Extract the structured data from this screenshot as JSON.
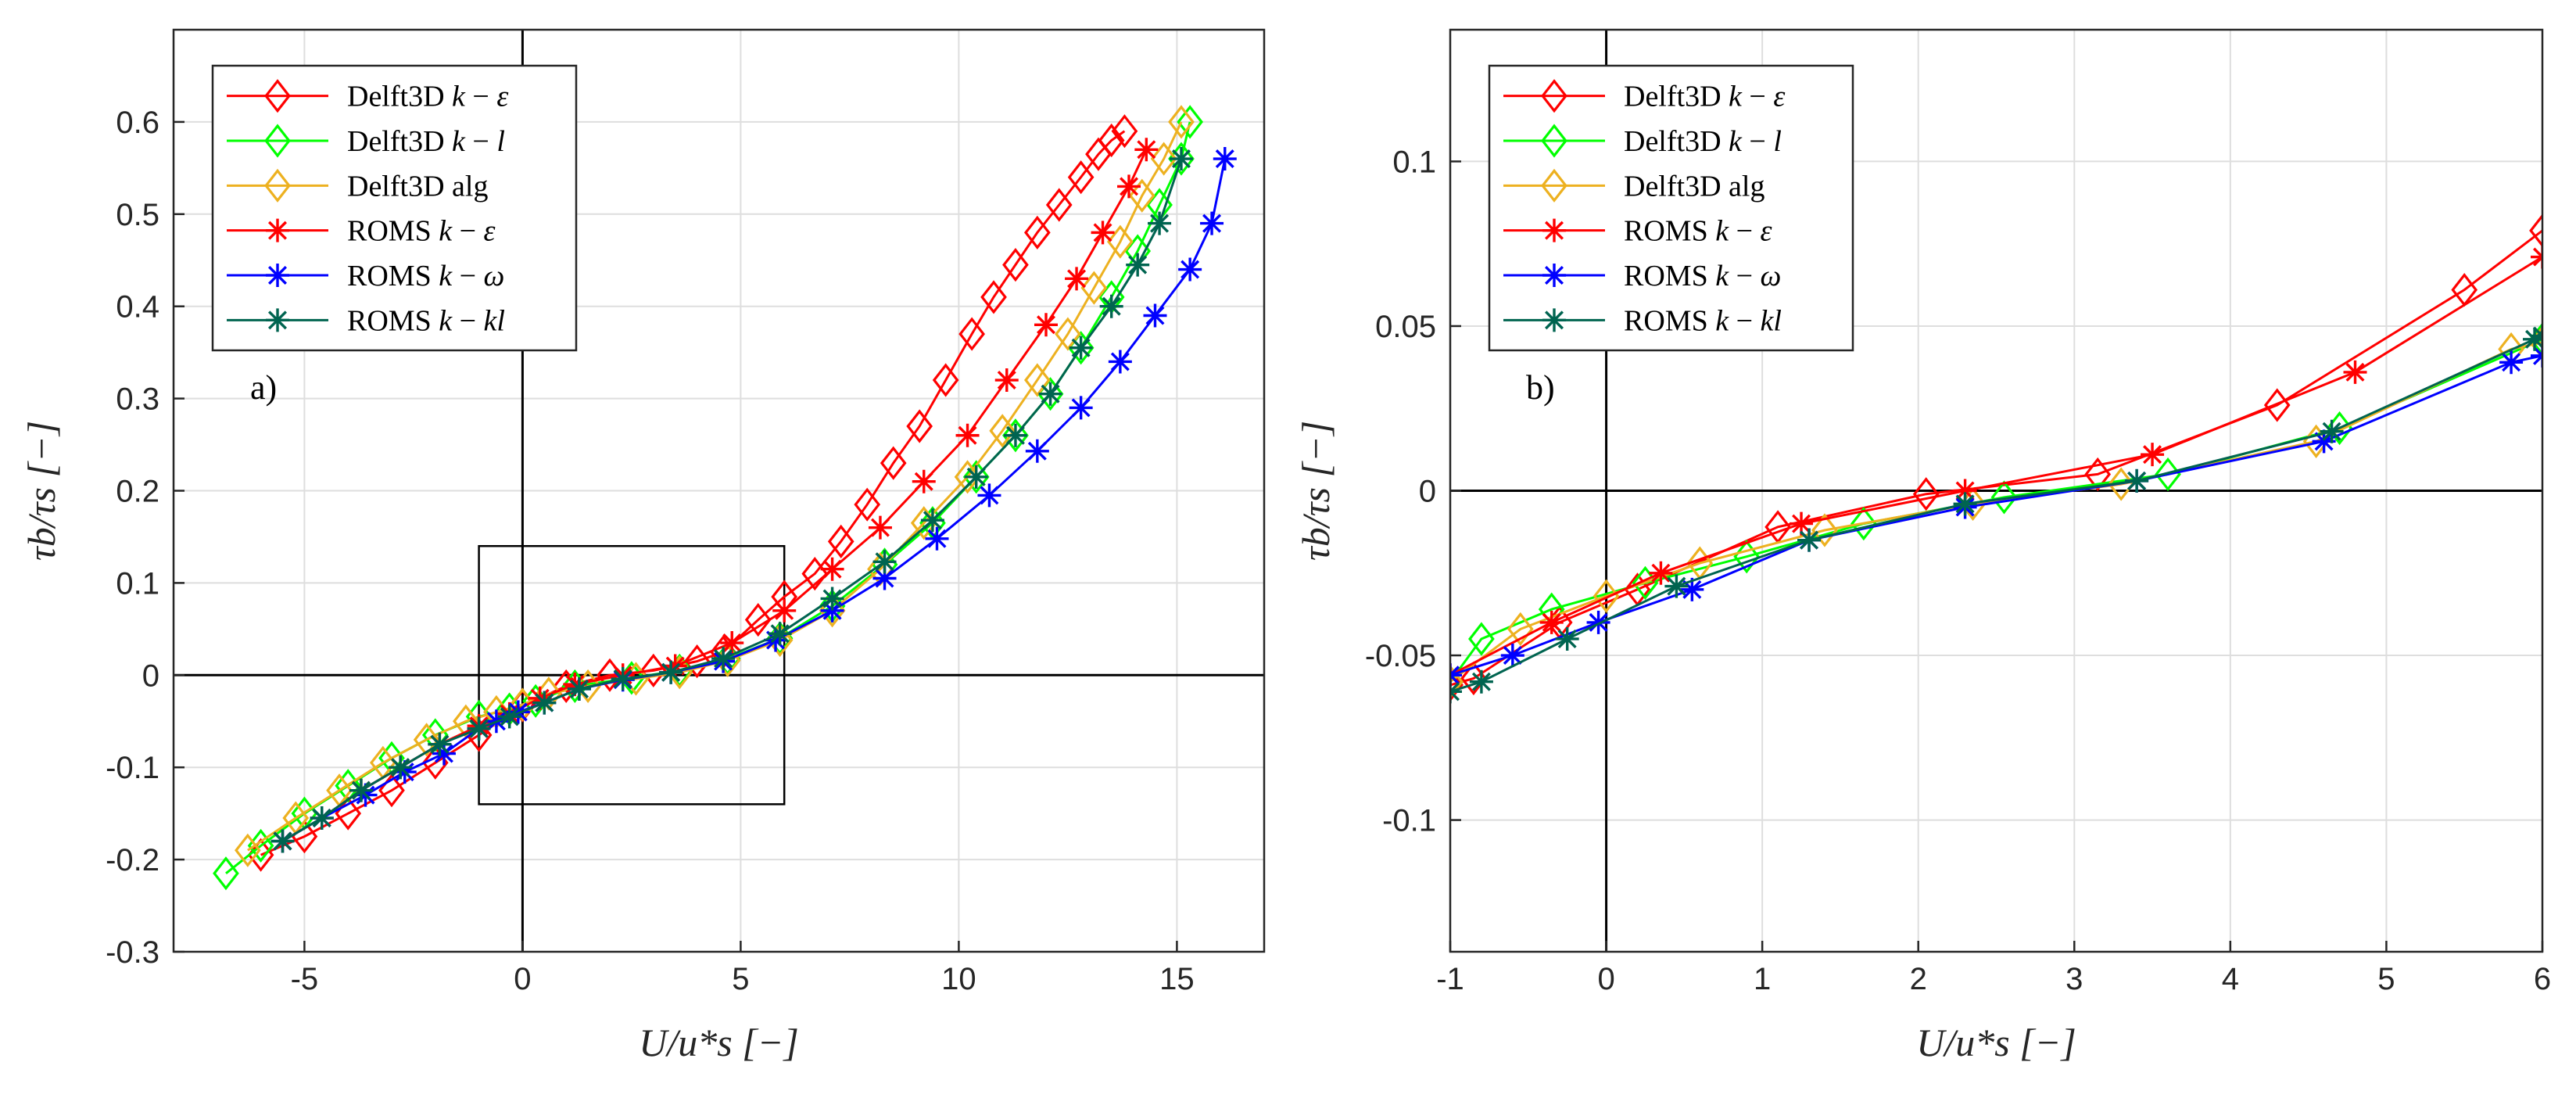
{
  "chart_data": [
    {
      "type": "line",
      "panel_label": "a)",
      "xlabel": "U/u*s [−]",
      "ylabel": "τb/τs [−]",
      "xlim": [
        -8,
        17
      ],
      "ylim": [
        -0.3,
        0.7
      ],
      "xticks": [
        -5,
        0,
        5,
        10,
        15
      ],
      "yticks": [
        -0.3,
        -0.2,
        -0.1,
        0,
        0.1,
        0.2,
        0.3,
        0.4,
        0.5,
        0.6
      ],
      "xtick_labels": [
        "-5",
        "0",
        "5",
        "10",
        "15"
      ],
      "ytick_labels": [
        "-0.3",
        "-0.2",
        "-0.1",
        "0",
        "0.1",
        "0.2",
        "0.3",
        "0.4",
        "0.5",
        "0.6"
      ],
      "zoom_box": {
        "x": [
          -1,
          6
        ],
        "y": [
          -0.14,
          0.14
        ]
      },
      "legend_position": "top-left",
      "series": [
        {
          "name": "Delft3D k − ε",
          "color": "#ff0000",
          "marker": "diamond",
          "x": [
            -6.0,
            -5.0,
            -4.0,
            -3.0,
            -2.0,
            -1.0,
            0.0,
            1.0,
            2.0,
            3.0,
            4.0,
            4.6,
            5.4,
            6.0,
            6.7,
            7.3,
            7.9,
            8.5,
            9.1,
            9.7,
            10.3,
            10.8,
            11.3,
            11.8,
            12.3,
            12.8,
            13.2,
            13.5,
            13.8
          ],
          "values": [
            -0.195,
            -0.175,
            -0.15,
            -0.125,
            -0.095,
            -0.065,
            -0.033,
            -0.012,
            0.0,
            0.005,
            0.015,
            0.025,
            0.06,
            0.085,
            0.11,
            0.145,
            0.185,
            0.23,
            0.27,
            0.32,
            0.37,
            0.41,
            0.445,
            0.48,
            0.51,
            0.54,
            0.565,
            0.58,
            0.59
          ]
        },
        {
          "name": "Delft3D k − l",
          "color": "#00ff00",
          "marker": "diamond",
          "x": [
            -6.8,
            -6.0,
            -5.0,
            -4.0,
            -3.0,
            -2.0,
            -1.0,
            -0.3,
            0.3,
            1.2,
            2.5,
            3.6,
            4.7,
            5.9,
            7.1,
            8.3,
            9.4,
            10.4,
            11.3,
            12.1,
            12.8,
            13.5,
            14.1,
            14.6,
            15.1,
            15.3
          ],
          "values": [
            -0.215,
            -0.185,
            -0.15,
            -0.12,
            -0.09,
            -0.065,
            -0.045,
            -0.037,
            -0.028,
            -0.012,
            -0.003,
            0.005,
            0.018,
            0.04,
            0.075,
            0.12,
            0.165,
            0.215,
            0.26,
            0.305,
            0.355,
            0.41,
            0.46,
            0.51,
            0.56,
            0.6
          ]
        },
        {
          "name": "Delft3D alg",
          "color": "#edb120",
          "marker": "diamond",
          "x": [
            -6.3,
            -5.2,
            -4.2,
            -3.2,
            -2.2,
            -1.3,
            -0.6,
            0.0,
            0.6,
            1.5,
            2.6,
            3.6,
            4.7,
            5.9,
            7.1,
            8.2,
            9.2,
            10.2,
            11.0,
            11.8,
            12.5,
            13.1,
            13.7,
            14.2,
            14.7,
            15.1
          ],
          "values": [
            -0.19,
            -0.155,
            -0.125,
            -0.095,
            -0.07,
            -0.05,
            -0.04,
            -0.032,
            -0.02,
            -0.012,
            -0.004,
            0.003,
            0.016,
            0.038,
            0.07,
            0.115,
            0.165,
            0.215,
            0.265,
            0.32,
            0.37,
            0.42,
            0.47,
            0.52,
            0.56,
            0.6
          ]
        },
        {
          "name": "ROMS k − ε",
          "color": "#ff0000",
          "marker": "asterisk",
          "x": [
            -5.5,
            -4.6,
            -3.7,
            -2.8,
            -1.9,
            -1.0,
            -0.3,
            0.4,
            1.2,
            2.3,
            3.5,
            4.8,
            6.0,
            7.1,
            8.2,
            9.2,
            10.2,
            11.1,
            12.0,
            12.7,
            13.3,
            13.9,
            14.3
          ],
          "values": [
            -0.18,
            -0.155,
            -0.125,
            -0.1,
            -0.075,
            -0.055,
            -0.042,
            -0.025,
            -0.01,
            0.0,
            0.01,
            0.035,
            0.07,
            0.115,
            0.16,
            0.21,
            0.26,
            0.32,
            0.38,
            0.43,
            0.48,
            0.53,
            0.57
          ]
        },
        {
          "name": "ROMS k − ω",
          "color": "#0000ff",
          "marker": "asterisk",
          "x": [
            -5.5,
            -4.6,
            -3.6,
            -2.7,
            -1.8,
            -1.0,
            -0.6,
            -0.1,
            0.5,
            1.3,
            2.3,
            3.4,
            4.6,
            5.8,
            7.1,
            8.3,
            9.5,
            10.7,
            11.8,
            12.8,
            13.7,
            14.5,
            15.3,
            15.8,
            16.1
          ],
          "values": [
            -0.18,
            -0.155,
            -0.13,
            -0.105,
            -0.085,
            -0.058,
            -0.05,
            -0.04,
            -0.03,
            -0.015,
            -0.005,
            0.003,
            0.015,
            0.038,
            0.07,
            0.105,
            0.148,
            0.195,
            0.243,
            0.29,
            0.34,
            0.39,
            0.44,
            0.49,
            0.56
          ]
        },
        {
          "name": "ROMS k − kl",
          "color": "#006450",
          "marker": "asterisk",
          "x": [
            -5.5,
            -4.6,
            -3.7,
            -2.8,
            -1.9,
            -1.0,
            -0.3,
            0.5,
            1.3,
            2.3,
            3.4,
            4.6,
            5.9,
            7.1,
            8.3,
            9.4,
            10.4,
            11.3,
            12.1,
            12.8,
            13.5,
            14.1,
            14.6,
            15.1
          ],
          "values": [
            -0.18,
            -0.155,
            -0.125,
            -0.1,
            -0.075,
            -0.058,
            -0.045,
            -0.03,
            -0.015,
            -0.004,
            0.003,
            0.018,
            0.045,
            0.083,
            0.123,
            0.168,
            0.215,
            0.26,
            0.305,
            0.355,
            0.4,
            0.445,
            0.49,
            0.56
          ]
        }
      ]
    },
    {
      "type": "line",
      "panel_label": "b)",
      "xlabel": "U/u*s [−]",
      "ylabel": "τb/τs [−]",
      "xlim": [
        -1,
        6
      ],
      "ylim": [
        -0.14,
        0.14
      ],
      "xticks": [
        -1,
        0,
        1,
        2,
        3,
        4,
        5,
        6
      ],
      "yticks": [
        -0.1,
        -0.05,
        0,
        0.05,
        0.1
      ],
      "xtick_labels": [
        "-1",
        "0",
        "1",
        "2",
        "3",
        "4",
        "5",
        "6"
      ],
      "ytick_labels": [
        "-0.1",
        "-0.05",
        "0",
        "0.05",
        "0.1"
      ],
      "legend_position": "top-left",
      "series": [
        {
          "name": "Delft3D k − ε",
          "color": "#ff0000",
          "marker": "diamond",
          "x": [
            -1.0,
            -0.85,
            -0.3,
            0.2,
            1.1,
            2.05,
            3.15,
            4.3,
            5.5,
            6.0
          ],
          "values": [
            -0.059,
            -0.057,
            -0.04,
            -0.03,
            -0.011,
            -0.001,
            0.005,
            0.026,
            0.061,
            0.079
          ]
        },
        {
          "name": "Delft3D k − l",
          "color": "#00ff00",
          "marker": "diamond",
          "x": [
            -1.0,
            -0.8,
            -0.35,
            0.25,
            0.9,
            1.65,
            2.55,
            3.6,
            4.7,
            6.0
          ],
          "values": [
            -0.058,
            -0.045,
            -0.036,
            -0.028,
            -0.02,
            -0.01,
            -0.002,
            0.005,
            0.019,
            0.046
          ]
        },
        {
          "name": "Delft3D alg",
          "color": "#edb120",
          "marker": "diamond",
          "x": [
            -1.0,
            -0.55,
            0.0,
            0.6,
            1.4,
            2.35,
            3.3,
            4.55,
            5.8,
            6.0
          ],
          "values": [
            -0.058,
            -0.042,
            -0.032,
            -0.022,
            -0.012,
            -0.004,
            0.002,
            0.015,
            0.043,
            0.045
          ]
        },
        {
          "name": "ROMS k − ε",
          "color": "#ff0000",
          "marker": "asterisk",
          "x": [
            -1.0,
            -0.35,
            0.35,
            1.25,
            2.3,
            3.5,
            4.8,
            6.0
          ],
          "values": [
            -0.056,
            -0.04,
            -0.025,
            -0.01,
            0.0,
            0.011,
            0.036,
            0.071
          ]
        },
        {
          "name": "ROMS k − ω",
          "color": "#0000ff",
          "marker": "asterisk",
          "x": [
            -1.0,
            -0.6,
            -0.05,
            0.55,
            1.3,
            2.3,
            3.4,
            4.6,
            5.8,
            6.0
          ],
          "values": [
            -0.056,
            -0.05,
            -0.04,
            -0.03,
            -0.015,
            -0.005,
            0.003,
            0.015,
            0.039,
            0.041
          ]
        },
        {
          "name": "ROMS k − kl",
          "color": "#006450",
          "marker": "asterisk",
          "x": [
            -1.0,
            -0.8,
            -0.25,
            0.45,
            1.3,
            2.3,
            3.4,
            4.65,
            5.95,
            6.0
          ],
          "values": [
            -0.061,
            -0.058,
            -0.045,
            -0.029,
            -0.015,
            -0.004,
            0.003,
            0.018,
            0.046,
            0.047
          ]
        }
      ]
    }
  ]
}
